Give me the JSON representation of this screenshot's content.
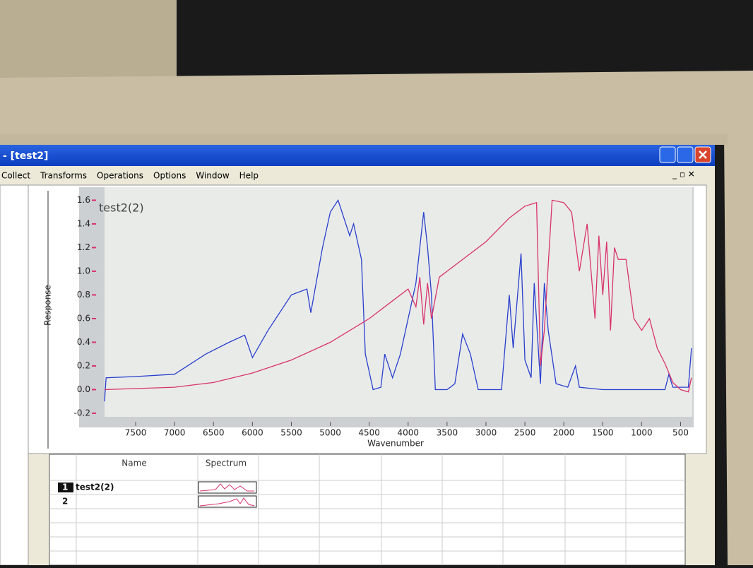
{
  "window": {
    "title": "- [test2]",
    "menu": [
      "Collect",
      "Transforms",
      "Operations",
      "Options",
      "Window",
      "Help"
    ]
  },
  "chart_data": {
    "type": "line",
    "label": "test2(2)",
    "xlabel": "Wavenumber",
    "ylabel": "Response",
    "xlim": [
      7900,
      350
    ],
    "ylim": [
      -0.23,
      1.71
    ],
    "xticks": [
      7500,
      7000,
      6500,
      6000,
      5500,
      5000,
      4500,
      4000,
      3500,
      3000,
      2500,
      2000,
      1500,
      1000,
      500
    ],
    "yticks": [
      -0.2,
      {
        "value": 0,
        "label": "0.0"
      },
      0.2,
      0.4,
      0.6,
      0.8,
      {
        "value": 1,
        "label": "1.0"
      },
      1.2,
      1.4,
      1.6
    ],
    "series": [
      {
        "color": "#2a3fd0",
        "x": [
          7900,
          7880,
          7500,
          7000,
          6600,
          6300,
          6100,
          6000,
          5800,
          5500,
          5300,
          5250,
          5100,
          5000,
          4900,
          4800,
          4750,
          4700,
          4600,
          4550,
          4450,
          4350,
          4300,
          4200,
          4100,
          4000,
          3900,
          3800,
          3750,
          3700,
          3650,
          3500,
          3400,
          3300,
          3200,
          3100,
          2900,
          2800,
          2700,
          2650,
          2550,
          2500,
          2420,
          2380,
          2300,
          2250,
          2200,
          2100,
          1950,
          1850,
          1800,
          1500,
          1000,
          700,
          650,
          600,
          400,
          360
        ],
        "values": [
          -0.1,
          0.1,
          0.11,
          0.13,
          0.3,
          0.4,
          0.46,
          0.27,
          0.5,
          0.8,
          0.85,
          0.65,
          1.2,
          1.5,
          1.6,
          1.4,
          1.3,
          1.4,
          1.1,
          0.3,
          0.0,
          0.02,
          0.3,
          0.1,
          0.3,
          0.6,
          0.9,
          1.5,
          1.2,
          0.8,
          0.0,
          0.0,
          0.05,
          0.47,
          0.3,
          0.0,
          0.0,
          0.0,
          0.8,
          0.35,
          1.15,
          0.25,
          0.1,
          0.9,
          0.05,
          0.9,
          0.5,
          0.05,
          0.02,
          0.2,
          0.02,
          0.0,
          0.0,
          0.0,
          0.13,
          0.02,
          0.02,
          0.35
        ]
      },
      {
        "color": "#d8336e",
        "x": [
          7900,
          7000,
          6500,
          6000,
          5500,
          5000,
          4500,
          4200,
          4000,
          3900,
          3850,
          3800,
          3750,
          3700,
          3600,
          3400,
          3000,
          2700,
          2500,
          2350,
          2300,
          2250,
          2150,
          2000,
          1900,
          1800,
          1700,
          1600,
          1550,
          1500,
          1450,
          1400,
          1350,
          1300,
          1200,
          1100,
          1000,
          900,
          800,
          700,
          600,
          500,
          400,
          360
        ],
        "values": [
          0.0,
          0.02,
          0.06,
          0.14,
          0.25,
          0.4,
          0.6,
          0.75,
          0.85,
          0.7,
          0.95,
          0.55,
          0.9,
          0.6,
          0.95,
          1.05,
          1.25,
          1.45,
          1.55,
          1.58,
          0.2,
          0.5,
          1.6,
          1.58,
          1.5,
          1.0,
          1.4,
          0.6,
          1.3,
          0.8,
          1.25,
          0.5,
          1.2,
          1.1,
          1.1,
          0.6,
          0.5,
          0.6,
          0.35,
          0.22,
          0.06,
          0.0,
          -0.02,
          0.1
        ]
      }
    ]
  },
  "table": {
    "columns": [
      "Name",
      "Spectrum"
    ],
    "rows": [
      {
        "index": "1",
        "name": "test2(2)"
      },
      {
        "index": "2"
      }
    ]
  }
}
